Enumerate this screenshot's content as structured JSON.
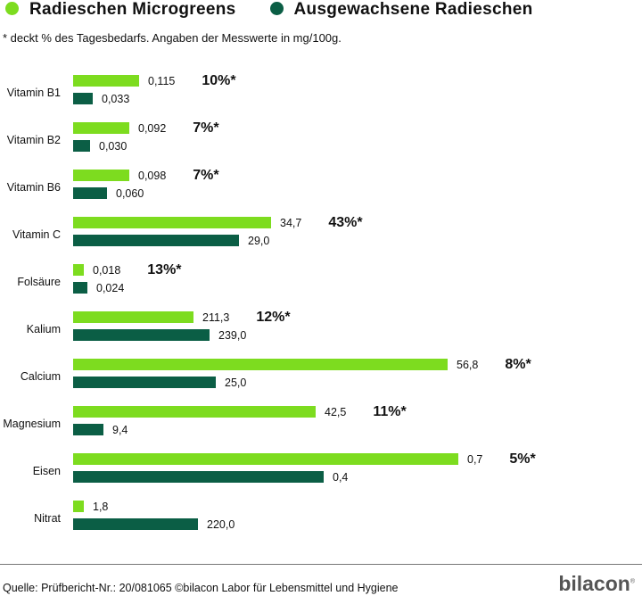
{
  "chart_data": {
    "type": "bar",
    "orientation": "horizontal",
    "title": "",
    "note": "* deckt % des Tagesbedarfs. Angaben der Messwerte in mg/100g.",
    "legend_placement": "top",
    "categories": [
      "Vitamin B1",
      "Vitamin B2",
      "Vitamin B6",
      "Vitamin C",
      "Folsäure",
      "Kalium",
      "Calcium",
      "Magnesium",
      "Eisen",
      "Nitrat"
    ],
    "series": [
      {
        "name": "Radieschen Microgreens",
        "color": "#7ddc1f",
        "values": [
          0.115,
          0.092,
          0.098,
          34.7,
          0.018,
          211.3,
          56.8,
          42.5,
          0.7,
          1.8
        ],
        "labels": [
          "0,115",
          "0,092",
          "0,098",
          "34,7",
          "0,018",
          "211,3",
          "56,8",
          "42,5",
          "0,7",
          "1,8"
        ],
        "daily_percent": [
          "10%*",
          "7%*",
          "7%*",
          "43%*",
          "13%*",
          "12%*",
          "8%*",
          "11%*",
          "5%*",
          ""
        ]
      },
      {
        "name": "Ausgewachsene Radieschen",
        "color": "#0b5e45",
        "values": [
          0.033,
          0.03,
          0.06,
          29.0,
          0.024,
          239.0,
          25.0,
          9.4,
          0.4,
          220.0
        ],
        "labels": [
          "0,033",
          "0,030",
          "0,060",
          "29,0",
          "0,024",
          "239,0",
          "25,0",
          "9,4",
          "0,4",
          "220,0"
        ]
      }
    ],
    "grid": false
  },
  "footer": {
    "source": "Quelle: Prüfbericht-Nr.: 20/081065 ©bilacon Labor für Lebensmittel und Hygiene",
    "logo": "bilacon"
  }
}
